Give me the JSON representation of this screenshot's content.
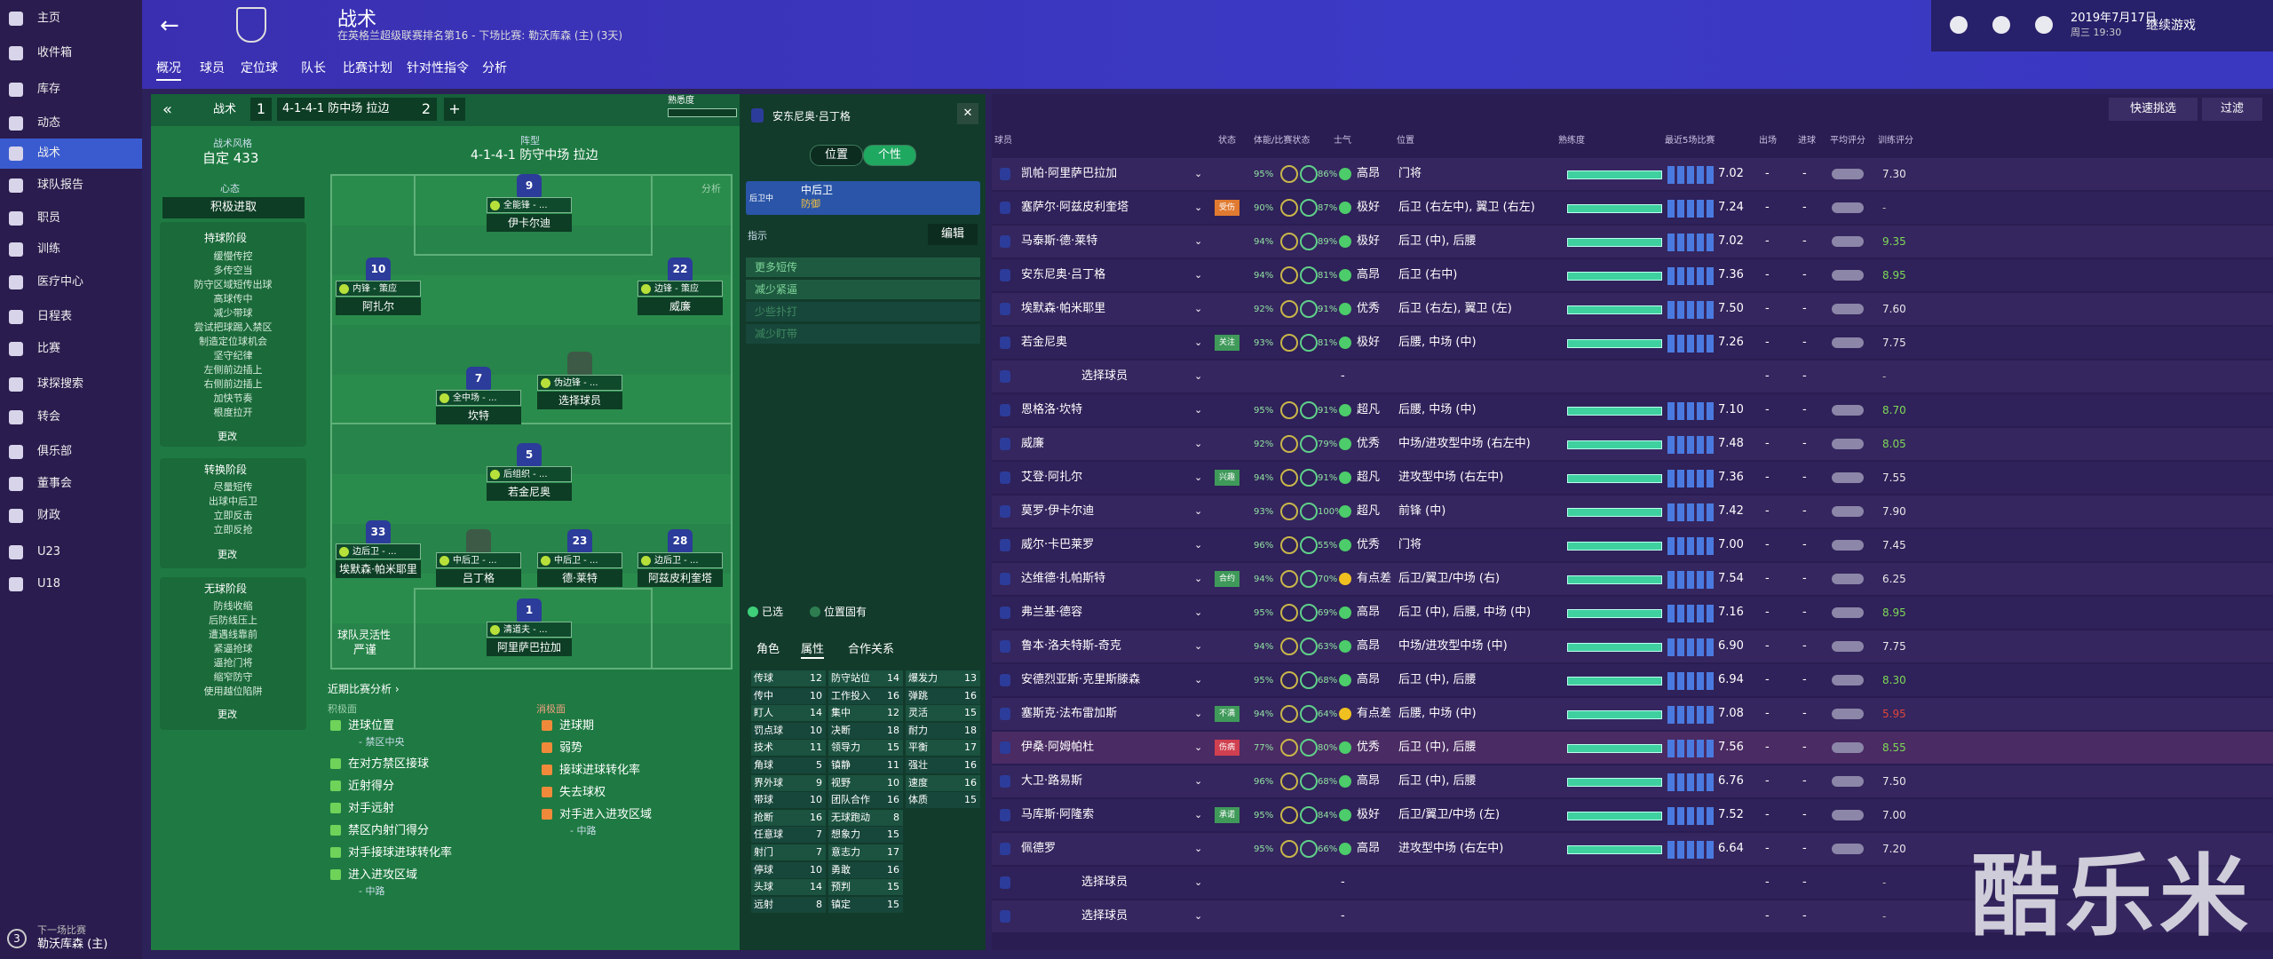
{
  "sidebar": {
    "items": [
      "主页",
      "收件箱",
      "库存",
      "动态",
      "战术",
      "球队报告",
      "职员",
      "训练",
      "医疗中心",
      "日程表",
      "比赛",
      "球探搜索",
      "转会",
      "俱乐部",
      "董事会",
      "财政",
      "U23",
      "U18"
    ],
    "next_label": "下一场比赛",
    "next_match": "勒沃库森 (主)",
    "next_days": "3"
  },
  "header": {
    "title": "战术",
    "subtitle": "在英格兰超级联赛排名第16 - 下场比赛: 勒沃库森 (主) (3天)",
    "date": "2019年7月17日",
    "time": "周三 19:30",
    "continue": "继续游戏"
  },
  "tabs": [
    "概况",
    "球员",
    "定位球",
    "队长",
    "比赛计划",
    "针对性指令",
    "分析"
  ],
  "tactic_bar": {
    "label": "战术",
    "slot1": "1",
    "formation": "4-1-4-1 防中场 拉边",
    "slot2": "2",
    "add": "+",
    "familiarity": "熟悉度"
  },
  "style": {
    "label": "战术风格",
    "value": "自定 433",
    "mentality_label": "心态",
    "mentality": "积极进取"
  },
  "phases": [
    {
      "title": "持球阶段",
      "items": [
        "缓慢传控",
        "多传空当",
        "防守区域短传出球",
        "高球传中",
        "减少带球",
        "尝试把球踢入禁区",
        "制造定位球机会",
        "坚守纪律",
        "左侧前边插上",
        "右侧前边插上",
        "加快节奏",
        "根度拉开"
      ],
      "change": "更改"
    },
    {
      "title": "转换阶段",
      "items": [
        "尽量短传",
        "出球中后卫",
        "立即反击",
        "立即反抢"
      ],
      "change": "更改"
    },
    {
      "title": "无球阶段",
      "items": [
        "防线收缩",
        "后防线压上",
        "遭遇线靠前",
        "紧逼抢球",
        "逼抢门将",
        "缩窄防守",
        "使用越位陷阱"
      ],
      "change": "更改"
    }
  ],
  "pitch": {
    "label": "阵型",
    "formation": "4-1-4-1 防守中场 拉边",
    "analysis": "分析",
    "players": [
      {
        "num": "9",
        "role": "全能锋 - ...",
        "name": "伊卡尔迪"
      },
      {
        "num": "10",
        "role": "内锋 - 策应",
        "name": "阿扎尔"
      },
      {
        "num": "22",
        "role": "边锋 - 策应",
        "name": "威廉"
      },
      {
        "num": "7",
        "role": "全中场 - ...",
        "name": "坎特"
      },
      {
        "role": "伪边锋 - ...",
        "name": "选择球员"
      },
      {
        "num": "5",
        "role": "后组织 - ...",
        "name": "若金尼奥"
      },
      {
        "num": "33",
        "role": "边后卫 - ...",
        "name": "埃默森·帕米耶里"
      },
      {
        "role": "中后卫 - ...",
        "name": "吕丁格"
      },
      {
        "num": "23",
        "role": "中后卫 - ...",
        "name": "德·莱特"
      },
      {
        "num": "28",
        "role": "边后卫 - ...",
        "name": "阿兹皮利奎塔"
      },
      {
        "num": "1",
        "role": "清道夫 - ...",
        "name": "阿里萨巴拉加"
      }
    ],
    "flex_label": "球队灵活性",
    "flex": "严谨"
  },
  "analysis": {
    "title": "近期比赛分析 ›",
    "pos_label": "积极面",
    "neg_label": "消极面",
    "positive": [
      {
        "text": "进球位置",
        "sub": "- 禁区中央"
      },
      {
        "text": "在对方禁区接球"
      },
      {
        "text": "近射得分"
      },
      {
        "text": "对手远射"
      },
      {
        "text": "禁区内射门得分"
      },
      {
        "text": "对手接球进球转化率"
      },
      {
        "text": "进入进攻区域",
        "sub": "- 中路"
      }
    ],
    "negative": [
      {
        "text": "进球期"
      },
      {
        "text": "弱势"
      },
      {
        "text": "接球进球转化率"
      },
      {
        "text": "失去球权"
      },
      {
        "text": "对手进入进攻区域",
        "sub": "- 中路"
      }
    ]
  },
  "player_panel": {
    "name": "安东尼奥·吕丁格",
    "toggle": [
      "位置",
      "个性"
    ],
    "role_short": "后卫中",
    "role": "中后卫",
    "duty": "防御",
    "instr_label": "指示",
    "edit": "编辑",
    "instructions": [
      "更多短传",
      "减少紧逼",
      "少些扑打",
      "减少盯带"
    ],
    "legend": [
      "已选",
      "位置固有"
    ],
    "subtabs": [
      "角色",
      "属性",
      "合作关系"
    ],
    "attributes": [
      [
        [
          "传球",
          12
        ],
        [
          "传中",
          10
        ],
        [
          "盯人",
          14
        ],
        [
          "罚点球",
          10
        ],
        [
          "技术",
          11
        ],
        [
          "角球",
          5
        ],
        [
          "界外球",
          9
        ],
        [
          "带球",
          10
        ],
        [
          "抢断",
          16
        ],
        [
          "任意球",
          7
        ],
        [
          "射门",
          7
        ],
        [
          "停球",
          10
        ],
        [
          "头球",
          14
        ],
        [
          "远射",
          8
        ]
      ],
      [
        [
          "防守站位",
          14
        ],
        [
          "工作投入",
          16
        ],
        [
          "集中",
          12
        ],
        [
          "决断",
          18
        ],
        [
          "领导力",
          15
        ],
        [
          "镇静",
          11
        ],
        [
          "视野",
          10
        ],
        [
          "团队合作",
          16
        ],
        [
          "无球跑动",
          8
        ],
        [
          "想象力",
          15
        ],
        [
          "意志力",
          17
        ],
        [
          "勇敢",
          16
        ],
        [
          "预判",
          15
        ],
        [
          "镇定",
          15
        ]
      ],
      [
        [
          "爆发力",
          13
        ],
        [
          "弹跳",
          16
        ],
        [
          "灵活",
          15
        ],
        [
          "耐力",
          18
        ],
        [
          "平衡",
          17
        ],
        [
          "强壮",
          16
        ],
        [
          "速度",
          16
        ],
        [
          "体质",
          15
        ]
      ]
    ]
  },
  "table": {
    "quick": "快速挑选",
    "filter": "过滤",
    "columns": [
      "球员",
      "状态",
      "体能/比赛状态",
      "士气",
      "位置",
      "熟练度",
      "最近5场比赛",
      "出场",
      "进球",
      "平均评分",
      "训练评分"
    ],
    "rows": [
      {
        "name": "凯帕·阿里萨巴拉加",
        "fit": "95%",
        "form": "86%",
        "morale": "高昂",
        "pos": "门将",
        "rating": "7.02",
        "apps": "-",
        "goals": "-",
        "train": "7.30"
      },
      {
        "name": "塞萨尔·阿兹皮利奎塔",
        "tag": "受伤",
        "fit": "90%",
        "form": "87%",
        "morale": "极好",
        "pos": "后卫 (右左中), 翼卫 (右左)",
        "rating": "7.24",
        "apps": "-",
        "goals": "-",
        "train": "-"
      },
      {
        "name": "马泰斯·德·莱特",
        "fit": "94%",
        "form": "89%",
        "morale": "极好",
        "pos": "后卫 (中), 后腰",
        "rating": "7.02",
        "apps": "-",
        "goals": "-",
        "train": "9.35"
      },
      {
        "name": "安东尼奥·吕丁格",
        "fit": "94%",
        "form": "81%",
        "morale": "高昂",
        "pos": "后卫 (右中)",
        "rating": "7.36",
        "apps": "-",
        "goals": "-",
        "train": "8.95"
      },
      {
        "name": "埃默森·帕米耶里",
        "fit": "92%",
        "form": "91%",
        "morale": "优秀",
        "pos": "后卫 (右左), 翼卫 (左)",
        "rating": "7.50",
        "apps": "-",
        "goals": "-",
        "train": "7.60"
      },
      {
        "name": "若金尼奥",
        "tag": "关注",
        "fit": "93%",
        "form": "81%",
        "morale": "极好",
        "pos": "后腰, 中场 (中)",
        "rating": "7.26",
        "apps": "-",
        "goals": "-",
        "train": "7.75"
      },
      {
        "name": "选择球员",
        "fit": "-",
        "apps": "-",
        "goals": "-",
        "train": "-"
      },
      {
        "name": "恩格洛·坎特",
        "fit": "95%",
        "form": "91%",
        "morale": "超凡",
        "pos": "后腰, 中场 (中)",
        "rating": "7.10",
        "apps": "-",
        "goals": "-",
        "train": "8.70"
      },
      {
        "name": "威廉",
        "fit": "92%",
        "form": "79%",
        "morale": "优秀",
        "pos": "中场/进攻型中场 (右左中)",
        "rating": "7.48",
        "apps": "-",
        "goals": "-",
        "train": "8.05"
      },
      {
        "name": "艾登·阿扎尔",
        "tag": "兴趣",
        "fit": "94%",
        "form": "91%",
        "morale": "超凡",
        "pos": "进攻型中场 (右左中)",
        "rating": "7.36",
        "apps": "-",
        "goals": "-",
        "train": "7.55"
      },
      {
        "name": "莫罗·伊卡尔迪",
        "fit": "93%",
        "form": "100%",
        "morale": "超凡",
        "pos": "前锋 (中)",
        "rating": "7.42",
        "apps": "-",
        "goals": "-",
        "train": "7.90"
      },
      {
        "name": "威尔·卡巴莱罗",
        "fit": "96%",
        "form": "55%",
        "morale": "优秀",
        "pos": "门将",
        "rating": "7.00",
        "apps": "-",
        "goals": "-",
        "train": "7.45"
      },
      {
        "name": "达维德·扎帕斯特",
        "tag": "合约",
        "fit": "94%",
        "form": "70%",
        "morale": "有点差",
        "pos": "后卫/翼卫/中场 (右)",
        "rating": "7.54",
        "apps": "-",
        "goals": "-",
        "train": "6.25"
      },
      {
        "name": "弗兰基·德容",
        "fit": "95%",
        "form": "69%",
        "morale": "高昂",
        "pos": "后卫 (中), 后腰, 中场 (中)",
        "rating": "7.16",
        "apps": "-",
        "goals": "-",
        "train": "8.95"
      },
      {
        "name": "鲁本·洛夫特斯-奇克",
        "fit": "94%",
        "form": "63%",
        "morale": "高昂",
        "pos": "中场/进攻型中场 (中)",
        "rating": "6.90",
        "apps": "-",
        "goals": "-",
        "train": "7.75"
      },
      {
        "name": "安德烈亚斯·克里斯滕森",
        "fit": "95%",
        "form": "68%",
        "morale": "高昂",
        "pos": "后卫 (中), 后腰",
        "rating": "6.94",
        "apps": "-",
        "goals": "-",
        "train": "8.30"
      },
      {
        "name": "塞斯克·法布雷加斯",
        "tag": "不满",
        "fit": "94%",
        "form": "64%",
        "morale": "有点差",
        "pos": "后腰, 中场 (中)",
        "rating": "7.08",
        "apps": "-",
        "goals": "-",
        "train": "5.95"
      },
      {
        "name": "伊桑·阿姆帕杜",
        "tag": "伤病",
        "fit": "77%",
        "form": "80%",
        "morale": "优秀",
        "pos": "后卫 (中), 后腰",
        "rating": "7.56",
        "apps": "-",
        "goals": "-",
        "train": "8.55"
      },
      {
        "name": "大卫·路易斯",
        "fit": "96%",
        "form": "68%",
        "morale": "高昂",
        "pos": "后卫 (中), 后腰",
        "rating": "6.76",
        "apps": "-",
        "goals": "-",
        "train": "7.50"
      },
      {
        "name": "马库斯·阿隆索",
        "tag": "承诺",
        "fit": "95%",
        "form": "84%",
        "morale": "极好",
        "pos": "后卫/翼卫/中场 (左)",
        "rating": "7.52",
        "apps": "-",
        "goals": "-",
        "train": "7.00"
      },
      {
        "name": "佩德罗",
        "fit": "95%",
        "form": "66%",
        "morale": "高昂",
        "pos": "进攻型中场 (右左中)",
        "rating": "6.64",
        "apps": "-",
        "goals": "-",
        "train": "7.20"
      },
      {
        "name": "选择球员",
        "fit": "-",
        "apps": "-",
        "goals": "-",
        "train": "-"
      },
      {
        "name": "选择球员",
        "fit": "-",
        "apps": "-",
        "goals": "-",
        "train": "-"
      }
    ]
  },
  "watermark": "酷乐米"
}
